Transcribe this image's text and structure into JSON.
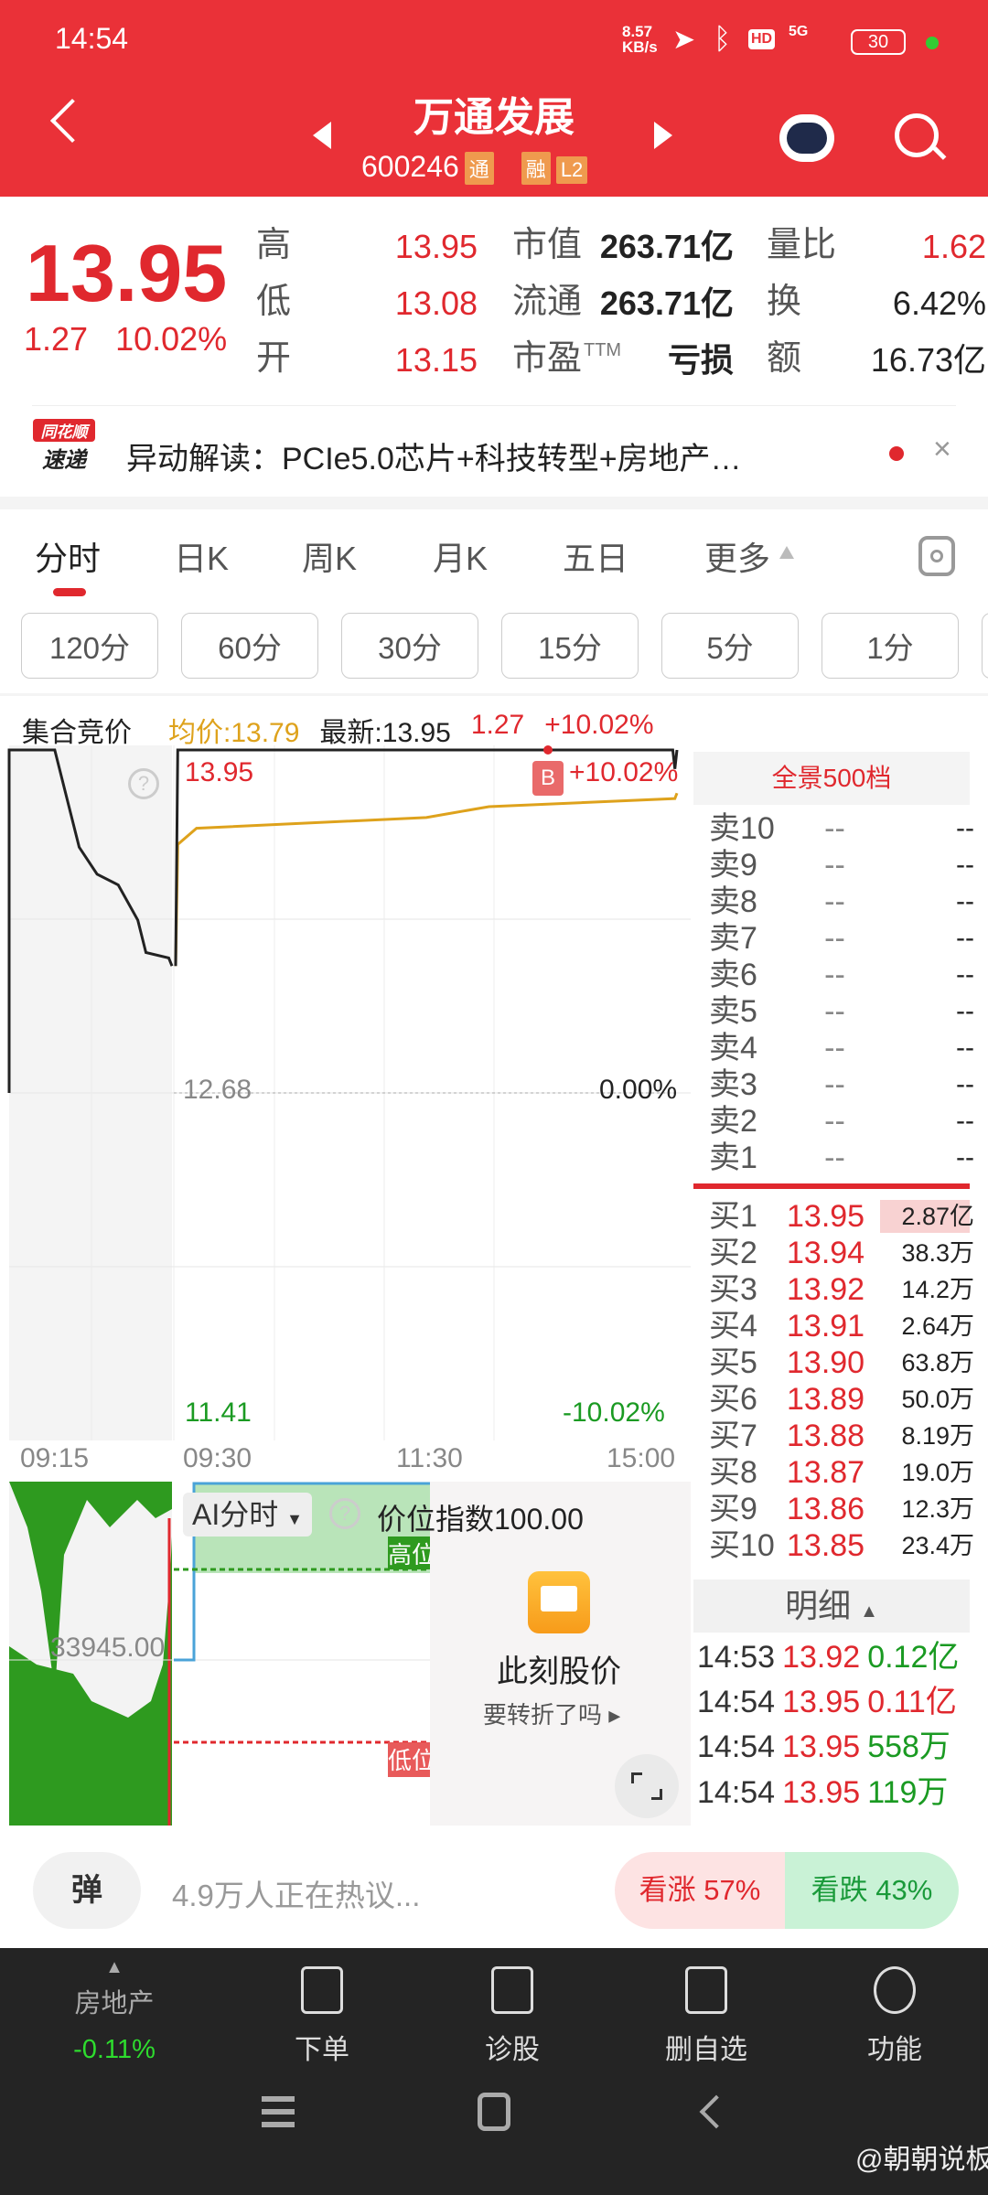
{
  "status_bar": {
    "time": "14:54",
    "net_speed": "8.57",
    "net_unit": "KB/s",
    "hd": "HD",
    "signal": "5G",
    "battery": "30"
  },
  "header": {
    "title": "万通发展",
    "code": "600246",
    "tags": [
      "通",
      "融",
      "L2"
    ]
  },
  "quote": {
    "price": "13.95",
    "change": "1.27",
    "change_pct": "10.02%",
    "rows": [
      {
        "l1": "高",
        "v1": "13.95",
        "l2": "市值",
        "v2": "263.71亿",
        "l3": "量比",
        "v3": "1.62"
      },
      {
        "l1": "低",
        "v1": "13.08",
        "l2": "流通",
        "v2": "263.71亿",
        "l3": "换",
        "v3": "6.42%"
      },
      {
        "l1": "开",
        "v1": "13.15",
        "l2": "市盈",
        "l2sup": "TTM",
        "v2": "亏损",
        "l3": "额",
        "v3": "16.73亿"
      }
    ]
  },
  "news": {
    "logo_top": "同花顺",
    "logo_bottom": "速递",
    "text": "异动解读：PCIe5.0芯片+科技转型+房地产…",
    "close": "×"
  },
  "tabs": [
    "分时",
    "日K",
    "周K",
    "月K",
    "五日",
    "更多"
  ],
  "periods": [
    "120分",
    "60分",
    "30分",
    "15分",
    "5分",
    "1分"
  ],
  "chart_header": {
    "auction": "集合竞价",
    "avg": "均价:13.79",
    "latest": "最新:13.95",
    "change": "1.27",
    "pct": "+10.02%"
  },
  "chart_data": {
    "type": "line",
    "y_top": "13.95",
    "y_mid": "12.68",
    "y_bottom": "11.41",
    "pct_top": "+10.02%",
    "pct_mid": "0.00%",
    "pct_bottom": "-10.02%",
    "ylim": [
      11.41,
      13.95
    ],
    "x_labels": [
      "09:15",
      "09:30",
      "11:30",
      "15:00"
    ],
    "auction_price": [
      [
        0,
        12.68
      ],
      [
        0,
        13.95
      ],
      [
        2.8,
        13.95
      ],
      [
        4.3,
        13.59
      ],
      [
        5.4,
        13.49
      ],
      [
        6.7,
        13.45
      ],
      [
        7.9,
        13.32
      ],
      [
        8.4,
        13.2
      ],
      [
        9.8,
        13.18
      ],
      [
        10,
        13.15
      ]
    ],
    "price": [
      [
        0,
        13.15
      ],
      [
        1,
        13.95
      ],
      [
        238,
        13.95
      ],
      [
        239,
        13.88
      ],
      [
        240,
        13.95
      ]
    ],
    "avg_price": [
      [
        0,
        13.15
      ],
      [
        1,
        13.6
      ],
      [
        10,
        13.66
      ],
      [
        120,
        13.7
      ],
      [
        150,
        13.74
      ],
      [
        239,
        13.77
      ],
      [
        240,
        13.79
      ]
    ],
    "marker": "B"
  },
  "orderbook": {
    "title": "全景500档",
    "sell": [
      {
        "l": "卖10",
        "p": "--",
        "v": "--"
      },
      {
        "l": "卖9",
        "p": "--",
        "v": "--"
      },
      {
        "l": "卖8",
        "p": "--",
        "v": "--"
      },
      {
        "l": "卖7",
        "p": "--",
        "v": "--"
      },
      {
        "l": "卖6",
        "p": "--",
        "v": "--"
      },
      {
        "l": "卖5",
        "p": "--",
        "v": "--"
      },
      {
        "l": "卖4",
        "p": "--",
        "v": "--"
      },
      {
        "l": "卖3",
        "p": "--",
        "v": "--"
      },
      {
        "l": "卖2",
        "p": "--",
        "v": "--"
      },
      {
        "l": "卖1",
        "p": "--",
        "v": "--"
      }
    ],
    "buy": [
      {
        "l": "买1",
        "p": "13.95",
        "v": "2.87亿"
      },
      {
        "l": "买2",
        "p": "13.94",
        "v": "38.3万"
      },
      {
        "l": "买3",
        "p": "13.92",
        "v": "14.2万"
      },
      {
        "l": "买4",
        "p": "13.91",
        "v": "2.64万"
      },
      {
        "l": "买5",
        "p": "13.90",
        "v": "63.8万"
      },
      {
        "l": "买6",
        "p": "13.89",
        "v": "50.0万"
      },
      {
        "l": "买7",
        "p": "13.88",
        "v": "8.19万"
      },
      {
        "l": "买8",
        "p": "13.87",
        "v": "19.0万"
      },
      {
        "l": "买9",
        "p": "13.86",
        "v": "12.3万"
      },
      {
        "l": "买10",
        "p": "13.85",
        "v": "23.4万"
      }
    ],
    "detail_label": "明细",
    "trades": [
      {
        "t": "14:53",
        "p": "13.92",
        "v": "0.12亿",
        "c": "green"
      },
      {
        "t": "14:54",
        "p": "13.95",
        "v": "0.11亿",
        "c": "red"
      },
      {
        "t": "14:54",
        "p": "13.95",
        "v": "558万",
        "c": "green"
      },
      {
        "t": "14:54",
        "p": "13.95",
        "v": "119万",
        "c": "green"
      }
    ]
  },
  "volume": {
    "value": "33945.00",
    "ai_label": "AI分时",
    "index": "价位指数100.00",
    "high": "高位",
    "low": "低位",
    "promo_title": "此刻股价",
    "promo_sub": "要转折了吗"
  },
  "bottom": {
    "danmu": "弹",
    "discuss": "4.9万人正在热议...",
    "bull": "看涨 57%",
    "bear": "看跌 43%",
    "bull_pct": 57
  },
  "nav": {
    "sector": "房地产",
    "sector_pct": "-0.11%",
    "items": [
      "下单",
      "诊股",
      "删自选",
      "功能"
    ]
  },
  "watermark": "@朝朝说板"
}
